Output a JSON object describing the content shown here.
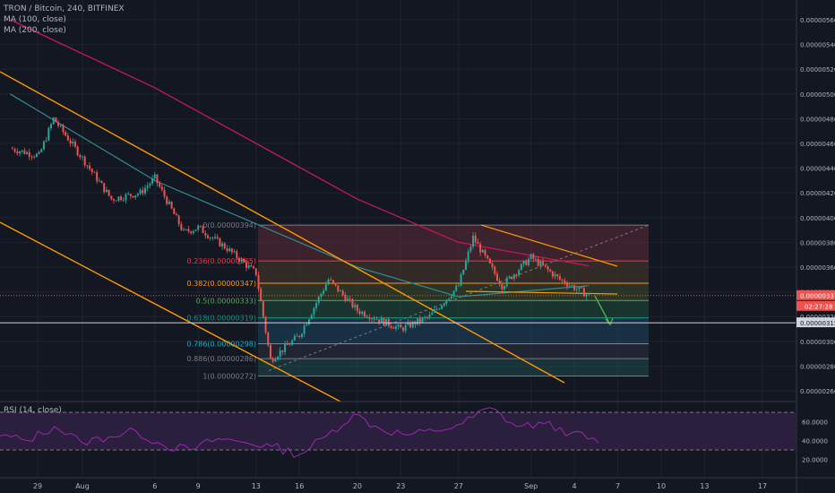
{
  "legend": {
    "symbol": "TRON / Bitcoin, 240, BITFINEX",
    "ma100": "MA (100, close)",
    "ma200": "MA (200, close)",
    "rsi": "RSI (14, close)"
  },
  "price_axis": {
    "ticks": [
      "0.00000560",
      "0.00000540",
      "0.00000520",
      "0.00000500",
      "0.00000480",
      "0.00000460",
      "0.00000440",
      "0.00000420",
      "0.00000400",
      "0.00000380",
      "0.00000360",
      "0.00000340",
      "0.00000320",
      "0.00000300",
      "0.00000280",
      "0.00000260"
    ],
    "last_price": "0.00000337",
    "countdown": "02:27:28",
    "crosshair_price": "0.00000315"
  },
  "rsi_axis": {
    "ticks": [
      "60.0000",
      "40.0000",
      "20.0000"
    ]
  },
  "time_axis": {
    "ticks": [
      "29",
      "Aug",
      "6",
      "9",
      "13",
      "16",
      "20",
      "23",
      "27",
      "Sep",
      "4",
      "7",
      "10",
      "13",
      "17"
    ]
  },
  "fib": {
    "levels": [
      {
        "label": "0(0.00000394)",
        "color": "#787b86"
      },
      {
        "label": "0.236(0.00000365)",
        "color": "#f23645"
      },
      {
        "label": "0.382(0.00000347)",
        "color": "#ff9800"
      },
      {
        "label": "0.5(0.00000333)",
        "color": "#4caf50"
      },
      {
        "label": "0.618(0.00000319)",
        "color": "#089981"
      },
      {
        "label": "0.786(0.00000298)",
        "color": "#00bcd4"
      },
      {
        "label": "0.886(0.00000286)",
        "color": "#787b86"
      },
      {
        "label": "1(0.00000272)",
        "color": "#787b86"
      }
    ]
  },
  "colors": {
    "background": "#131722",
    "up": "#26a69a",
    "down": "#ef5350",
    "ma100": "#2e8b8e",
    "ma200": "#c2185b",
    "trendline": "#ff9800",
    "rsi_line": "#9c27b0",
    "last_price": "#ef5350"
  },
  "chart_data": {
    "type": "candlestick",
    "title": "TRON / Bitcoin, 240, BITFINEX",
    "ylim": [
      2.6e-06,
      5.7e-06
    ],
    "close_path": [
      {
        "x": "Jul 27",
        "y": 4.56e-06
      },
      {
        "x": "Jul 29",
        "y": 4.5e-06
      },
      {
        "x": "Jul 30",
        "y": 4.8e-06
      },
      {
        "x": "Aug 1",
        "y": 4.48e-06
      },
      {
        "x": "Aug 3",
        "y": 4.15e-06
      },
      {
        "x": "Aug 5",
        "y": 4.2e-06
      },
      {
        "x": "Aug 6",
        "y": 4.32e-06
      },
      {
        "x": "Aug 8",
        "y": 3.88e-06
      },
      {
        "x": "Aug 9",
        "y": 3.92e-06
      },
      {
        "x": "Aug 11",
        "y": 3.75e-06
      },
      {
        "x": "Aug 13",
        "y": 3.55e-06
      },
      {
        "x": "Aug 14",
        "y": 2.85e-06
      },
      {
        "x": "Aug 16",
        "y": 3.05e-06
      },
      {
        "x": "Aug 18",
        "y": 3.5e-06
      },
      {
        "x": "Aug 20",
        "y": 3.25e-06
      },
      {
        "x": "Aug 23",
        "y": 3.1e-06
      },
      {
        "x": "Aug 25",
        "y": 3.2e-06
      },
      {
        "x": "Aug 27",
        "y": 3.45e-06
      },
      {
        "x": "Aug 28",
        "y": 3.84e-06
      },
      {
        "x": "Aug 30",
        "y": 3.45e-06
      },
      {
        "x": "Sep 1",
        "y": 3.68e-06
      },
      {
        "x": "Sep 3",
        "y": 3.5e-06
      },
      {
        "x": "Sep 5",
        "y": 3.37e-06
      }
    ],
    "ma100": [
      {
        "x": "Jul 27",
        "y": 5e-06
      },
      {
        "x": "Aug 6",
        "y": 4.3e-06
      },
      {
        "x": "Aug 13",
        "y": 3.95e-06
      },
      {
        "x": "Aug 20",
        "y": 3.6e-06
      },
      {
        "x": "Aug 27",
        "y": 3.36e-06
      },
      {
        "x": "Sep 5",
        "y": 3.45e-06
      }
    ],
    "ma200": [
      {
        "x": "Jul 27",
        "y": 5.6e-06
      },
      {
        "x": "Aug 6",
        "y": 5.05e-06
      },
      {
        "x": "Aug 13",
        "y": 4.6e-06
      },
      {
        "x": "Aug 20",
        "y": 4.15e-06
      },
      {
        "x": "Aug 27",
        "y": 3.8e-06
      },
      {
        "x": "Sep 5",
        "y": 3.61e-06
      }
    ],
    "rsi": {
      "name": "RSI (14, close)",
      "ylim": [
        10,
        80
      ],
      "bands": [
        30,
        70
      ],
      "values": [
        45,
        40,
        55,
        38,
        44,
        50,
        35,
        30,
        42,
        38,
        34,
        25,
        45,
        68,
        52,
        46,
        50,
        58,
        75,
        55,
        58,
        48,
        38
      ]
    }
  }
}
